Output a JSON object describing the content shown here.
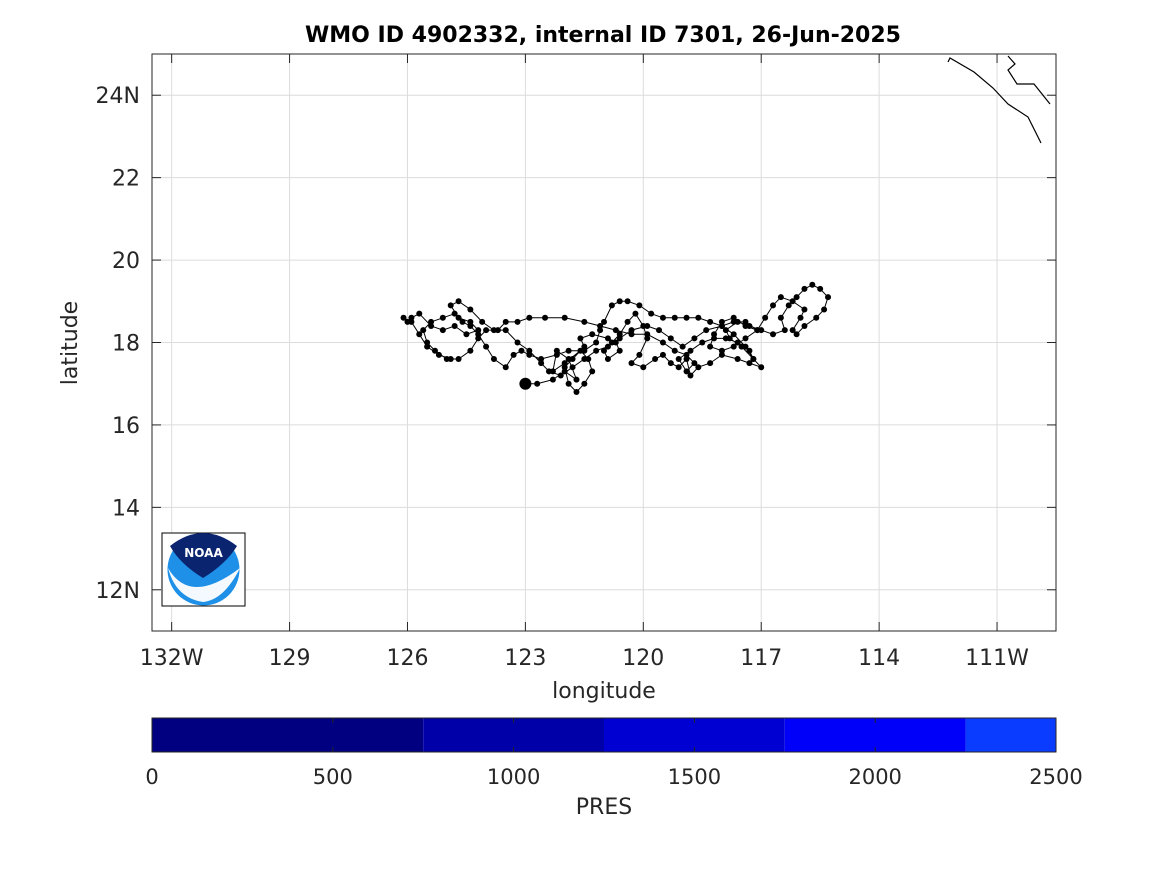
{
  "chart_data": {
    "type": "scatter",
    "title": "WMO ID 4902332, internal ID 7301, 26-Jun-2025",
    "xlabel": "longitude",
    "ylabel": "latitude",
    "xlim": [
      -132.5,
      -109.5
    ],
    "ylim": [
      11,
      25
    ],
    "x_ticks": [
      -132,
      -129,
      -126,
      -123,
      -120,
      -117,
      -114,
      -111
    ],
    "x_tick_labels": [
      "132W",
      "129",
      "126",
      "123",
      "120",
      "117",
      "114",
      "111W"
    ],
    "y_ticks": [
      12,
      14,
      16,
      18,
      20,
      22,
      24
    ],
    "y_tick_labels": [
      "12N",
      "14",
      "16",
      "18",
      "20",
      "22",
      "24N"
    ],
    "grid": true,
    "logo": "NOAA",
    "colorbar": {
      "label": "PRES",
      "range": [
        0,
        2500
      ],
      "ticks": [
        0,
        500,
        1000,
        1500,
        2000,
        2500
      ],
      "tick_labels": [
        "0",
        "500",
        "1000",
        "1500",
        "2000",
        "2500"
      ],
      "segments": [
        {
          "from": 0,
          "to": 750,
          "color": "#000080"
        },
        {
          "from": 750,
          "to": 1250,
          "color": "#0000a9"
        },
        {
          "from": 1250,
          "to": 1750,
          "color": "#0000d2"
        },
        {
          "from": 1750,
          "to": 2250,
          "color": "#0000fa"
        },
        {
          "from": 2250,
          "to": 2500,
          "color": "#0a3cff"
        }
      ]
    },
    "start_point": {
      "lon": -123.0,
      "lat": 17.0
    },
    "track": [
      [
        -123.0,
        17.0
      ],
      [
        -122.7,
        17.0
      ],
      [
        -122.3,
        17.1
      ],
      [
        -122.0,
        17.3
      ],
      [
        -121.7,
        17.1
      ],
      [
        -121.9,
        17.6
      ],
      [
        -122.2,
        17.8
      ],
      [
        -122.3,
        17.3
      ],
      [
        -122.0,
        17.5
      ],
      [
        -121.6,
        17.8
      ],
      [
        -121.4,
        17.6
      ],
      [
        -121.3,
        17.3
      ],
      [
        -121.5,
        17.0
      ],
      [
        -121.7,
        16.8
      ],
      [
        -121.9,
        17.0
      ],
      [
        -122.0,
        17.4
      ],
      [
        -121.8,
        17.6
      ],
      [
        -121.5,
        17.9
      ],
      [
        -121.6,
        18.1
      ],
      [
        -121.3,
        18.2
      ],
      [
        -120.9,
        18.1
      ],
      [
        -120.7,
        18.0
      ],
      [
        -120.6,
        17.8
      ],
      [
        -120.9,
        17.6
      ],
      [
        -121.0,
        17.8
      ],
      [
        -120.8,
        18.0
      ],
      [
        -120.6,
        18.2
      ],
      [
        -120.4,
        18.5
      ],
      [
        -120.2,
        18.7
      ],
      [
        -120.0,
        18.4
      ],
      [
        -119.9,
        18.1
      ],
      [
        -120.1,
        17.7
      ],
      [
        -120.3,
        17.5
      ],
      [
        -120.0,
        17.4
      ],
      [
        -119.7,
        17.6
      ],
      [
        -119.5,
        17.7
      ],
      [
        -119.3,
        17.5
      ],
      [
        -119.1,
        17.4
      ],
      [
        -118.9,
        17.6
      ],
      [
        -118.8,
        17.2
      ],
      [
        -118.6,
        17.4
      ],
      [
        -118.3,
        17.5
      ],
      [
        -118.0,
        17.7
      ],
      [
        -117.6,
        17.6
      ],
      [
        -117.3,
        17.5
      ],
      [
        -117.0,
        17.4
      ],
      [
        -117.2,
        17.6
      ],
      [
        -117.5,
        17.9
      ],
      [
        -117.8,
        18.1
      ],
      [
        -117.9,
        18.3
      ],
      [
        -117.6,
        18.5
      ],
      [
        -117.3,
        18.4
      ],
      [
        -117.0,
        18.3
      ],
      [
        -116.7,
        18.2
      ],
      [
        -116.4,
        18.3
      ],
      [
        -116.5,
        18.6
      ],
      [
        -116.3,
        18.9
      ],
      [
        -116.1,
        19.1
      ],
      [
        -115.9,
        19.3
      ],
      [
        -115.7,
        19.4
      ],
      [
        -115.5,
        19.3
      ],
      [
        -115.3,
        19.1
      ],
      [
        -115.4,
        18.8
      ],
      [
        -115.6,
        18.6
      ],
      [
        -115.9,
        18.4
      ],
      [
        -116.1,
        18.2
      ],
      [
        -116.2,
        18.3
      ],
      [
        -116.0,
        18.6
      ],
      [
        -115.9,
        18.8
      ],
      [
        -116.2,
        19.0
      ],
      [
        -116.5,
        19.1
      ],
      [
        -116.7,
        18.9
      ],
      [
        -116.9,
        18.6
      ],
      [
        -117.1,
        18.3
      ],
      [
        -117.4,
        18.1
      ],
      [
        -117.7,
        17.9
      ],
      [
        -118.0,
        17.8
      ],
      [
        -118.3,
        17.9
      ],
      [
        -118.2,
        18.2
      ],
      [
        -118.0,
        18.5
      ],
      [
        -117.7,
        18.6
      ],
      [
        -117.4,
        18.4
      ],
      [
        -117.1,
        18.3
      ],
      [
        -117.4,
        18.5
      ],
      [
        -117.7,
        18.5
      ],
      [
        -118.0,
        18.4
      ],
      [
        -118.3,
        18.5
      ],
      [
        -118.6,
        18.6
      ],
      [
        -118.9,
        18.6
      ],
      [
        -119.2,
        18.6
      ],
      [
        -119.5,
        18.6
      ],
      [
        -119.8,
        18.7
      ],
      [
        -120.1,
        18.9
      ],
      [
        -120.4,
        19.0
      ],
      [
        -120.6,
        19.0
      ],
      [
        -120.8,
        18.9
      ],
      [
        -121.0,
        18.5
      ],
      [
        -121.1,
        18.3
      ],
      [
        -121.2,
        18.0
      ],
      [
        -121.5,
        17.8
      ],
      [
        -121.9,
        17.8
      ],
      [
        -122.2,
        17.7
      ],
      [
        -122.6,
        17.6
      ],
      [
        -122.9,
        17.7
      ],
      [
        -123.1,
        17.8
      ],
      [
        -123.3,
        17.7
      ],
      [
        -123.5,
        17.4
      ],
      [
        -123.8,
        17.6
      ],
      [
        -124.0,
        17.9
      ],
      [
        -124.2,
        18.2
      ],
      [
        -124.4,
        18.4
      ],
      [
        -124.6,
        18.5
      ],
      [
        -124.8,
        18.7
      ],
      [
        -125.1,
        18.6
      ],
      [
        -125.4,
        18.5
      ],
      [
        -125.6,
        18.3
      ],
      [
        -125.5,
        18.0
      ],
      [
        -125.3,
        17.8
      ],
      [
        -125.0,
        17.6
      ],
      [
        -124.7,
        17.6
      ],
      [
        -124.4,
        17.8
      ],
      [
        -124.2,
        18.1
      ],
      [
        -124.0,
        18.3
      ],
      [
        -123.7,
        18.3
      ],
      [
        -123.5,
        18.5
      ],
      [
        -123.2,
        18.5
      ],
      [
        -122.9,
        18.6
      ],
      [
        -122.5,
        18.6
      ],
      [
        -122.0,
        18.6
      ],
      [
        -121.5,
        18.5
      ],
      [
        -121.1,
        18.4
      ],
      [
        -120.7,
        18.3
      ],
      [
        -120.3,
        18.2
      ],
      [
        -119.9,
        18.2
      ],
      [
        -119.5,
        18.0
      ],
      [
        -119.2,
        17.8
      ],
      [
        -118.9,
        17.7
      ],
      [
        -118.7,
        17.5
      ],
      [
        -118.9,
        17.3
      ],
      [
        -119.1,
        17.6
      ],
      [
        -118.8,
        17.8
      ],
      [
        -118.5,
        18.0
      ],
      [
        -118.2,
        18.1
      ],
      [
        -117.9,
        18.1
      ],
      [
        -117.6,
        18.0
      ],
      [
        -117.3,
        17.8
      ],
      [
        -117.2,
        17.6
      ],
      [
        -117.4,
        17.9
      ],
      [
        -117.7,
        18.2
      ],
      [
        -118.0,
        18.4
      ],
      [
        -118.4,
        18.3
      ],
      [
        -118.7,
        18.1
      ],
      [
        -119.0,
        17.9
      ],
      [
        -119.3,
        18.1
      ],
      [
        -119.6,
        18.3
      ],
      [
        -119.9,
        18.4
      ],
      [
        -120.3,
        18.3
      ],
      [
        -120.6,
        18.1
      ],
      [
        -120.9,
        17.9
      ],
      [
        -121.2,
        17.8
      ],
      [
        -121.5,
        17.6
      ],
      [
        -121.8,
        17.4
      ],
      [
        -122.1,
        17.2
      ],
      [
        -122.4,
        17.3
      ],
      [
        -122.6,
        17.5
      ],
      [
        -122.9,
        17.8
      ],
      [
        -123.2,
        18.0
      ],
      [
        -123.5,
        18.3
      ],
      [
        -123.8,
        18.3
      ],
      [
        -124.1,
        18.5
      ],
      [
        -124.4,
        18.8
      ],
      [
        -124.7,
        19.0
      ],
      [
        -124.9,
        18.9
      ],
      [
        -124.7,
        18.6
      ],
      [
        -124.4,
        18.5
      ],
      [
        -124.2,
        18.3
      ],
      [
        -124.5,
        18.2
      ],
      [
        -124.8,
        18.4
      ],
      [
        -125.1,
        18.3
      ],
      [
        -125.4,
        18.4
      ],
      [
        -125.7,
        18.7
      ],
      [
        -125.9,
        18.6
      ],
      [
        -126.0,
        18.5
      ],
      [
        -126.1,
        18.6
      ],
      [
        -125.9,
        18.5
      ],
      [
        -125.7,
        18.2
      ],
      [
        -125.5,
        17.9
      ],
      [
        -125.2,
        17.7
      ],
      [
        -124.9,
        17.6
      ]
    ]
  }
}
